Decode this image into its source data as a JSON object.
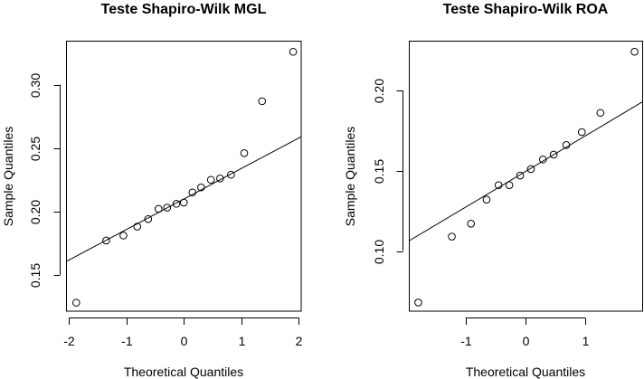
{
  "chart_data": [
    {
      "type": "scatter",
      "title": "Teste Shapiro-Wilk MGL",
      "xlabel": "Theoretical Quantiles",
      "ylabel": "Sample Quantiles",
      "xlim": [
        -2.04,
        2.04
      ],
      "ylim": [
        0.1213,
        0.3344
      ],
      "x_ticks": [
        -2,
        -1,
        0,
        1,
        2
      ],
      "x_tick_labels": [
        "-2",
        "-1",
        "0",
        "1",
        "2"
      ],
      "y_ticks": [
        0.15,
        0.2,
        0.25,
        0.3
      ],
      "y_tick_labels": [
        "0.15",
        "0.20",
        "0.25",
        "0.30"
      ],
      "grid": false,
      "points": {
        "x": [
          -1.87,
          -1.35,
          -1.05,
          -0.81,
          -0.62,
          -0.44,
          -0.29,
          -0.13,
          0.0,
          0.15,
          0.3,
          0.47,
          0.63,
          0.82,
          1.05,
          1.36,
          1.9
        ],
        "y": [
          0.128,
          0.177,
          0.181,
          0.188,
          0.194,
          0.202,
          0.203,
          0.206,
          0.207,
          0.215,
          0.219,
          0.225,
          0.226,
          0.229,
          0.246,
          0.287,
          0.326
        ]
      },
      "qqline": {
        "intercept": 0.2098,
        "slope": 0.0241
      }
    },
    {
      "type": "scatter",
      "title": "Teste Shapiro-Wilk ROA",
      "xlabel": "Theoretical Quantiles",
      "ylabel": "Sample Quantiles",
      "xlim": [
        -1.94,
        1.955
      ],
      "ylim": [
        0.0626,
        0.2306
      ],
      "x_ticks": [
        -1,
        0,
        1
      ],
      "x_tick_labels": [
        "-1",
        "0",
        "1"
      ],
      "y_ticks": [
        0.1,
        0.15,
        0.2
      ],
      "y_tick_labels": [
        "0.10",
        "0.15",
        "0.20"
      ],
      "grid": false,
      "points": {
        "x": [
          -1.79,
          -1.23,
          -0.91,
          -0.65,
          -0.45,
          -0.27,
          -0.09,
          0.09,
          0.29,
          0.47,
          0.68,
          0.94,
          1.25,
          1.82
        ],
        "y": [
          0.068,
          0.109,
          0.117,
          0.132,
          0.141,
          0.141,
          0.147,
          0.151,
          0.157,
          0.16,
          0.166,
          0.174,
          0.186,
          0.224
        ]
      },
      "qqline": {
        "intercept": 0.1495,
        "slope": 0.0222
      }
    }
  ]
}
